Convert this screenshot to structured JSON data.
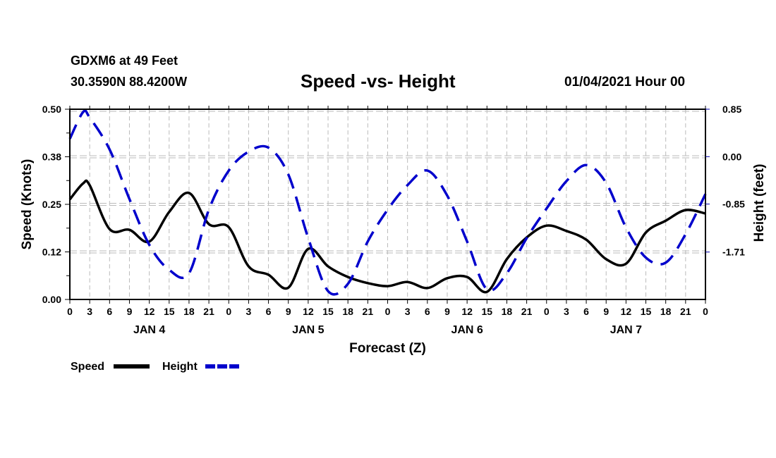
{
  "header": {
    "station": "GDXM6 at 49 Feet",
    "coords": "30.3590N 88.4200W",
    "title": "Speed -vs- Height",
    "date": "01/04/2021 Hour 00"
  },
  "chart_data": {
    "type": "line",
    "title": "Speed -vs- Height",
    "xlabel": "Forecast (Z)",
    "ylabel": "Speed (Knots)",
    "y2label": "Height (feet)",
    "xlim": [
      0,
      96
    ],
    "ylim": [
      0.0,
      0.5
    ],
    "y2lim": [
      -2.56,
      0.85
    ],
    "grid": true,
    "x_tick_labels": [
      "0",
      "3",
      "6",
      "9",
      "12",
      "15",
      "18",
      "21",
      "0",
      "3",
      "6",
      "9",
      "12",
      "15",
      "18",
      "21",
      "0",
      "3",
      "6",
      "9",
      "12",
      "15",
      "18",
      "21",
      "0",
      "3",
      "6",
      "9",
      "12",
      "15",
      "18",
      "21",
      "0"
    ],
    "day_labels": [
      {
        "label": "JAN 4",
        "hour": 12
      },
      {
        "label": "JAN 5",
        "hour": 36
      },
      {
        "label": "JAN 6",
        "hour": 60
      },
      {
        "label": "JAN 7",
        "hour": 84
      }
    ],
    "y_tick_labels": [
      "0.00",
      "0.12",
      "0.25",
      "0.38",
      "0.50"
    ],
    "y_ticks": [
      0.0,
      0.125,
      0.25,
      0.375,
      0.5
    ],
    "y2_tick_labels": [
      "0.85",
      "0.00",
      "-0.85",
      "-1.71"
    ],
    "y2_ticks": [
      0.85,
      0.0,
      -0.85,
      -1.71
    ],
    "legend": {
      "placement": "bottom-left",
      "entries": [
        "Speed",
        "Height"
      ]
    },
    "x": [
      0,
      2,
      3,
      6,
      9,
      12,
      15,
      18,
      21,
      24,
      27,
      30,
      33,
      36,
      39,
      42,
      45,
      48,
      51,
      54,
      57,
      60,
      63,
      66,
      69,
      72,
      75,
      78,
      81,
      84,
      87,
      90,
      93,
      96
    ],
    "series": [
      {
        "name": "Speed",
        "axis": "left",
        "color": "#000000",
        "style": "solid",
        "values": [
          0.263,
          0.305,
          0.3,
          0.185,
          0.183,
          0.152,
          0.23,
          0.28,
          0.198,
          0.19,
          0.087,
          0.065,
          0.031,
          0.133,
          0.087,
          0.059,
          0.043,
          0.035,
          0.046,
          0.03,
          0.056,
          0.059,
          0.02,
          0.106,
          0.163,
          0.194,
          0.18,
          0.157,
          0.106,
          0.094,
          0.176,
          0.207,
          0.235,
          0.226
        ]
      },
      {
        "name": "Height",
        "axis": "right",
        "color": "#0000cc",
        "style": "dashed",
        "values": [
          0.32,
          0.8,
          0.7,
          0.13,
          -0.76,
          -1.58,
          -2.03,
          -2.09,
          -0.95,
          -0.25,
          0.09,
          0.16,
          -0.32,
          -1.46,
          -2.41,
          -2.28,
          -1.52,
          -0.95,
          -0.51,
          -0.25,
          -0.7,
          -1.52,
          -2.38,
          -2.09,
          -1.46,
          -0.93,
          -0.44,
          -0.15,
          -0.47,
          -1.27,
          -1.81,
          -1.9,
          -1.39,
          -0.67
        ]
      }
    ]
  }
}
